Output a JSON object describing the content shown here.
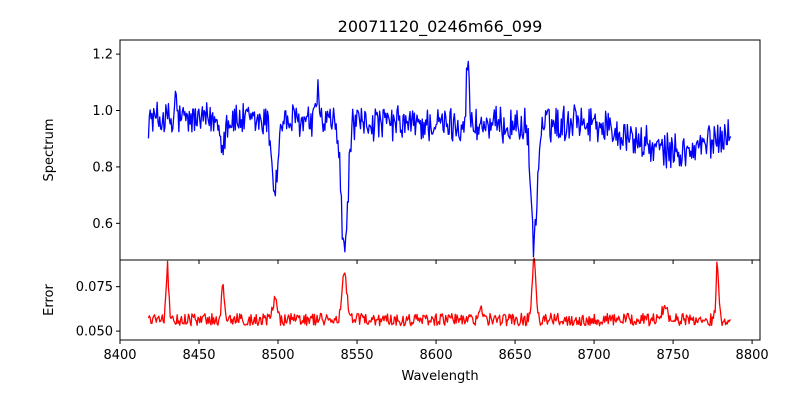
{
  "figure": {
    "title": "20071120_0246m66_099"
  },
  "chart_data": [
    {
      "panel": "spectrum",
      "type": "line",
      "title": "20071120_0246m66_099",
      "xlabel": "",
      "ylabel": "Spectrum",
      "xlim": [
        8400,
        8805
      ],
      "ylim": [
        0.47,
        1.25
      ],
      "xticks": [
        8400,
        8450,
        8500,
        8550,
        8600,
        8650,
        8700,
        8750,
        8800
      ],
      "yticks": [
        0.6,
        0.8,
        1.0,
        1.2
      ],
      "ytick_labels": [
        "0.6",
        "0.8",
        "1.0",
        "1.2"
      ],
      "color": "#0000ff",
      "x_range": [
        8418,
        8787
      ],
      "noise_amplitude": 0.055,
      "continuum": [
        [
          8418,
          0.97
        ],
        [
          8550,
          0.955
        ],
        [
          8640,
          0.945
        ],
        [
          8700,
          0.96
        ],
        [
          8740,
          0.86
        ],
        [
          8760,
          0.85
        ],
        [
          8787,
          0.93
        ]
      ],
      "absorption_features": [
        {
          "center": 8498,
          "depth": 0.24,
          "width": 1.8
        },
        {
          "center": 8542,
          "depth": 0.47,
          "width": 2.0
        },
        {
          "center": 8662,
          "depth": 0.41,
          "width": 2.0
        },
        {
          "center": 8465,
          "depth": 0.08,
          "width": 1.2
        },
        {
          "center": 8434,
          "depth": 0.06,
          "width": 1.0
        }
      ],
      "spikes": [
        {
          "center": 8620,
          "height": 0.25,
          "width": 0.8
        },
        {
          "center": 8435,
          "height": 0.12,
          "width": 0.8
        },
        {
          "center": 8525,
          "height": 0.13,
          "width": 0.8
        },
        {
          "center": 8688,
          "height": 0.07,
          "width": 0.8
        }
      ]
    },
    {
      "panel": "error",
      "type": "line",
      "xlabel": "Wavelength",
      "ylabel": "Error",
      "xlim": [
        8400,
        8805
      ],
      "ylim": [
        0.045,
        0.09
      ],
      "xticks": [
        8400,
        8450,
        8500,
        8550,
        8600,
        8650,
        8700,
        8750,
        8800
      ],
      "xtick_labels": [
        "8400",
        "8450",
        "8500",
        "8550",
        "8600",
        "8650",
        "8700",
        "8750",
        "8800"
      ],
      "yticks": [
        0.05,
        0.075
      ],
      "ytick_labels": [
        "0.050",
        "0.075"
      ],
      "color": "#ff0000",
      "x_range": [
        8418,
        8787
      ],
      "baseline": 0.0565,
      "noise_amplitude": 0.0035,
      "spikes": [
        {
          "center": 8430,
          "height": 0.03,
          "width": 0.8
        },
        {
          "center": 8465,
          "height": 0.019,
          "width": 0.8
        },
        {
          "center": 8498,
          "height": 0.013,
          "width": 1.2
        },
        {
          "center": 8542,
          "height": 0.025,
          "width": 1.5
        },
        {
          "center": 8662,
          "height": 0.033,
          "width": 1.3
        },
        {
          "center": 8778,
          "height": 0.033,
          "width": 0.8
        },
        {
          "center": 8628,
          "height": 0.008,
          "width": 1.0
        },
        {
          "center": 8745,
          "height": 0.009,
          "width": 1.5
        }
      ]
    }
  ]
}
